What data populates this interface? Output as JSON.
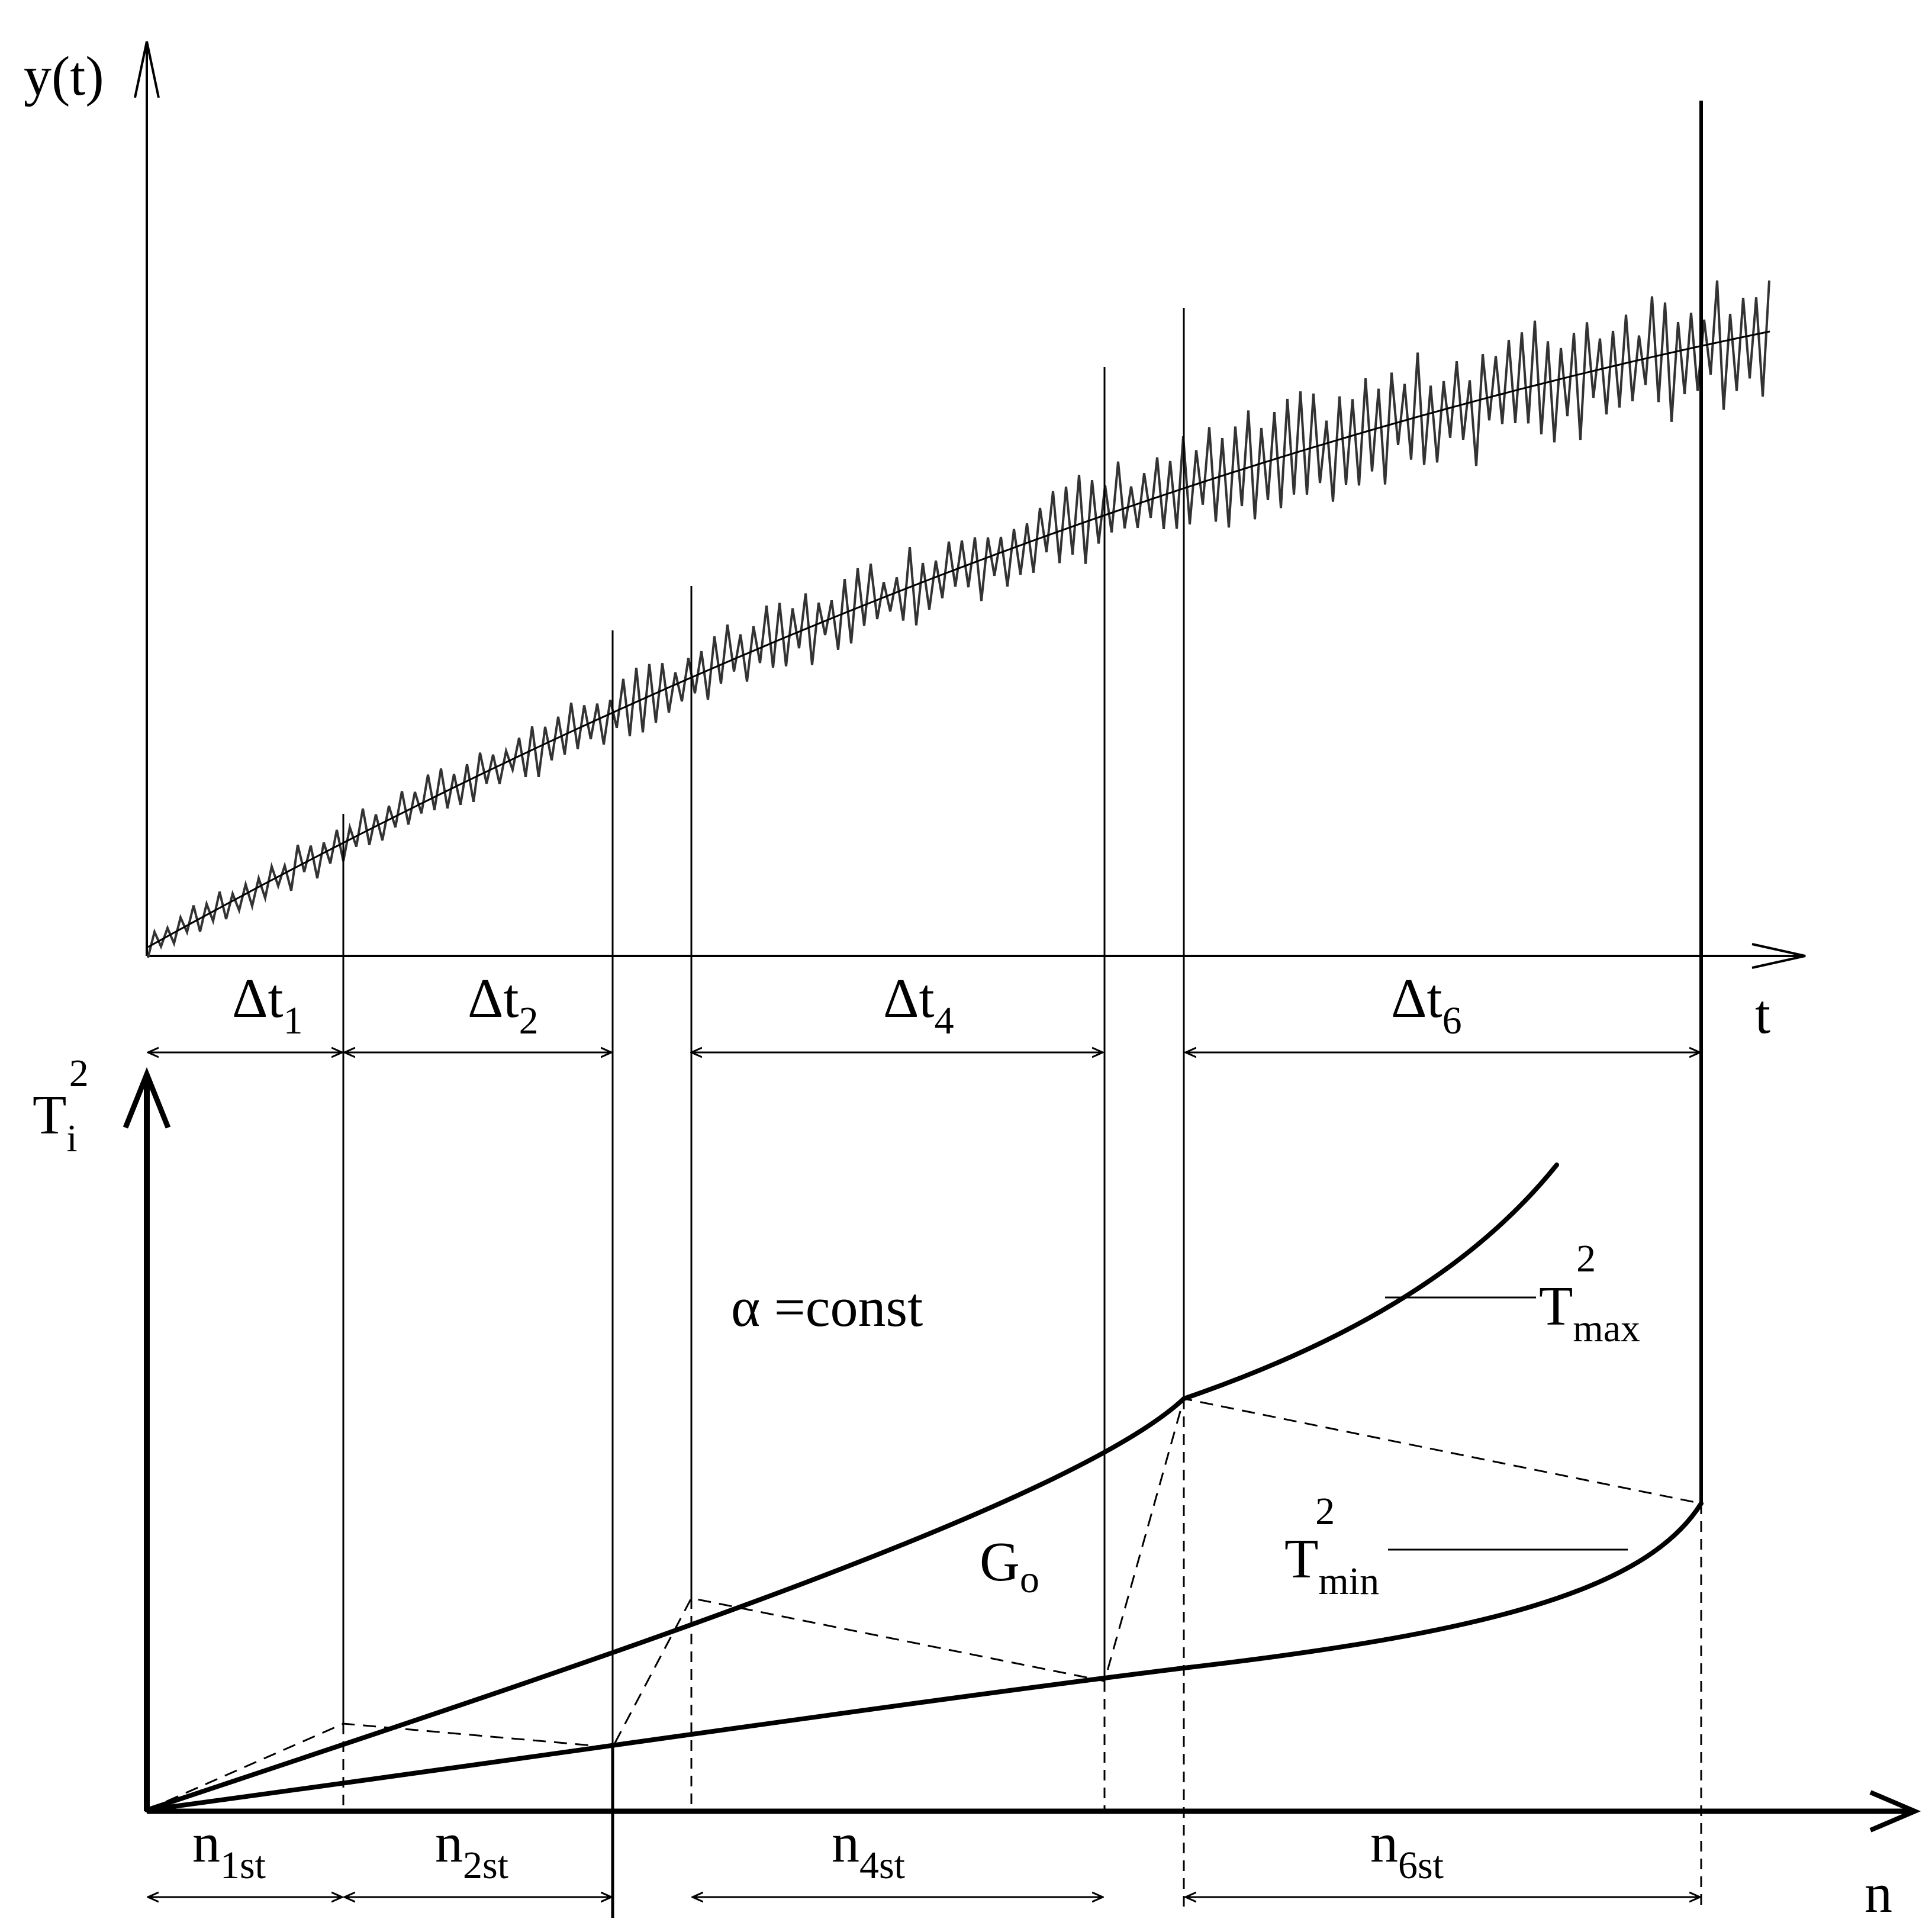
{
  "upper": {
    "y_axis_label": "y(t)",
    "x_axis_label": "t",
    "intervals": [
      {
        "base": "Δt",
        "sub": "1"
      },
      {
        "base": "Δt",
        "sub": "2"
      },
      {
        "base": "Δt",
        "sub": "4"
      },
      {
        "base": "Δt",
        "sub": "6"
      }
    ]
  },
  "lower": {
    "y_axis_label": {
      "base": "T",
      "sub": "i",
      "sup": "2"
    },
    "x_axis_label": "n",
    "annotation_alpha": "α =const",
    "annotation_g": {
      "base": "G",
      "sub": "o"
    },
    "curve_max_label": {
      "base": "T",
      "sub": "max",
      "sup": "2"
    },
    "curve_min_label": {
      "base": "T",
      "sub": "min",
      "sup": "2"
    },
    "intervals": [
      {
        "base": "n",
        "sub": "1st"
      },
      {
        "base": "n",
        "sub": "2st"
      },
      {
        "base": "n",
        "sub": "4st"
      },
      {
        "base": "n",
        "sub": "6st"
      }
    ]
  },
  "colors": {
    "ink": "#000000",
    "noise": "#333333",
    "background": "#ffffff"
  }
}
